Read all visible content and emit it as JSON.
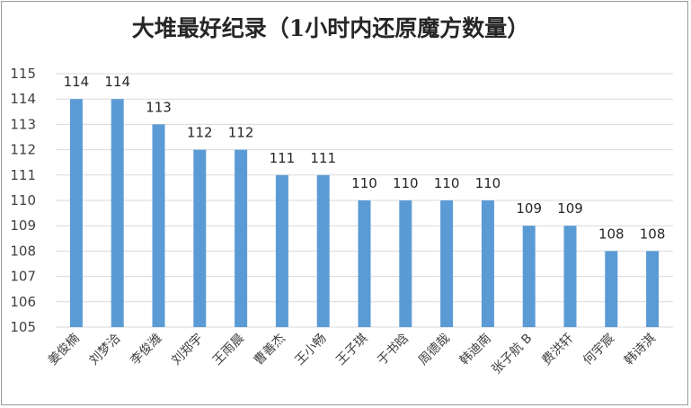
{
  "chart_data": {
    "type": "bar",
    "title": "大堆最好纪录（1小时内还原魔方数量）",
    "xlabel": "",
    "ylabel": "",
    "categories": [
      "姜俊楠",
      "刘梦洽",
      "李俊潍",
      "刘郑宇",
      "王雨晨",
      "曹善杰",
      "王小畅",
      "王子琪",
      "于书晗",
      "周德哉",
      "韩迪南",
      "张子航 B",
      "费洪轩",
      "何宇宸",
      "韩诗淇"
    ],
    "values": [
      114,
      114,
      113,
      112,
      112,
      111,
      111,
      110,
      110,
      110,
      110,
      109,
      109,
      108,
      108
    ],
    "data_labels": [
      "114",
      "114",
      "113",
      "112",
      "112",
      "111",
      "111",
      "110",
      "110",
      "110",
      "110",
      "109",
      "109",
      "108",
      "108"
    ],
    "ylim": [
      105,
      115
    ],
    "yticks": [
      "105",
      "106",
      "107",
      "108",
      "109",
      "110",
      "111",
      "112",
      "113",
      "114",
      "115"
    ],
    "grid": true,
    "legend": "none",
    "bar_color": "#5B9BD5"
  }
}
